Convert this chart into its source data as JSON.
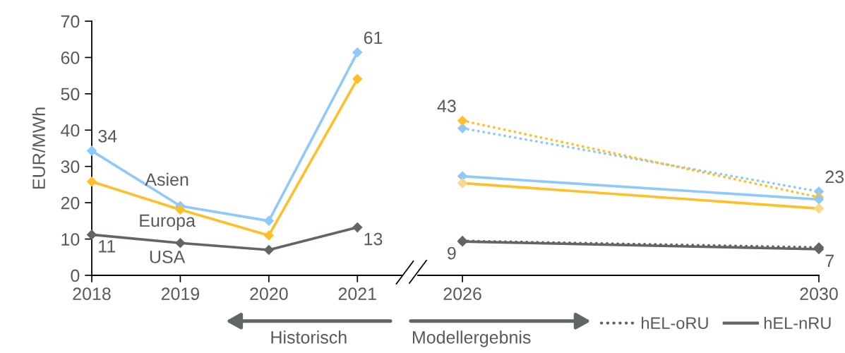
{
  "chart_data": [
    {
      "type": "line",
      "x": [
        2018,
        2019,
        2020,
        2021
      ],
      "xlim": [
        2018,
        2021.5
      ],
      "xticks": [
        2018,
        2019,
        2020,
        2021
      ],
      "ylim": [
        0,
        70
      ],
      "yticks": [
        0,
        10,
        20,
        30,
        40,
        50,
        60,
        70
      ],
      "ylabel": "EUR/MWh",
      "marker": "diamond",
      "series": [
        {
          "name": "Asien",
          "color": "#8ec9fa",
          "line_style": "solid",
          "values": [
            34.3,
            19.1,
            15.0,
            61.4
          ],
          "value_labels": [
            "34",
            null,
            null,
            "61"
          ]
        },
        {
          "name": "Europa",
          "color": "#ffbf2a",
          "line_style": "solid",
          "values": [
            25.8,
            18.1,
            11.0,
            54.1
          ]
        },
        {
          "name": "USA",
          "color": "#5f6665",
          "line_style": "solid",
          "values": [
            11.2,
            8.9,
            7.0,
            13.2
          ],
          "value_labels": [
            "11",
            null,
            null,
            "13"
          ]
        }
      ],
      "annotations": [
        "Historisch"
      ]
    },
    {
      "type": "line",
      "x": [
        2026,
        2030
      ],
      "xlim": [
        2025.5,
        2030
      ],
      "xticks": [
        2026,
        2030
      ],
      "ylim": [
        0,
        70
      ],
      "tick_labels": "x",
      "marker": "diamond",
      "legend": "bottom",
      "series": [
        {
          "color": "#8ec9fa",
          "line_style": "dotted",
          "values": [
            40.5,
            23.1
          ],
          "value_labels": [
            null,
            "23"
          ]
        },
        {
          "color": "#ffbf2a",
          "line_style": "dotted",
          "values": [
            42.6,
            21.5
          ],
          "value_labels": [
            "43",
            null
          ]
        },
        {
          "name": "hEL-oRU",
          "color": "#5f6665",
          "line_style": "dotted",
          "values": [
            9.5,
            7.7
          ]
        },
        {
          "color": "#8ec9fa",
          "line_style": "solid",
          "values": [
            27.3,
            20.9
          ]
        },
        {
          "color": "#ffbf2a",
          "colors": [
            "#fdd68a",
            "#fdd68a"
          ],
          "line_style": "solid",
          "values": [
            25.4,
            18.4
          ]
        },
        {
          "name": "hEL-nRU",
          "color": "#5f6665",
          "line_style": "solid",
          "values": [
            9.3,
            7.2
          ],
          "value_labels": [
            "9",
            "7"
          ]
        }
      ],
      "annotations": [
        "Modellergebnis"
      ]
    }
  ]
}
